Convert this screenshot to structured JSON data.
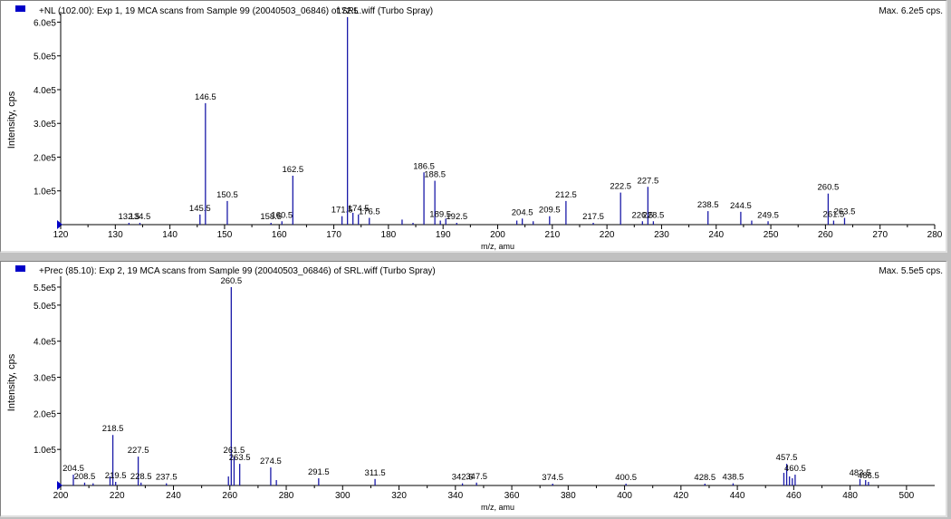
{
  "panels": [
    {
      "header": "+NL (102.00): Exp 1, 19 MCA scans from Sample 99 (20040503_06846) of SRL.wiff (Turbo Spray)",
      "max_label": "Max. 6.2e5 cps."
    },
    {
      "header": "+Prec (85.10): Exp 2, 19 MCA scans from Sample 99 (20040503_06846) of SRL.wiff (Turbo Spray)",
      "max_label": "Max. 5.5e5 cps."
    }
  ],
  "colors": {
    "peak": "#1a1aa8",
    "axis": "#000000",
    "background": "#ffffff"
  },
  "chart_data": [
    {
      "type": "bar",
      "xlabel": "m/z, amu",
      "ylabel": "Intensity, cps",
      "xlim": [
        120,
        280
      ],
      "ylim": [
        0,
        620000
      ],
      "x_ticks": [
        120,
        130,
        140,
        150,
        160,
        170,
        180,
        190,
        200,
        210,
        220,
        230,
        240,
        250,
        260,
        270,
        280
      ],
      "y_ticks": [
        {
          "value": 100000,
          "label": "1.0e5"
        },
        {
          "value": 200000,
          "label": "2.0e5"
        },
        {
          "value": 300000,
          "label": "3.0e5"
        },
        {
          "value": 400000,
          "label": "4.0e5"
        },
        {
          "value": 500000,
          "label": "5.0e5"
        },
        {
          "value": 600000,
          "label": "6.0e5"
        }
      ],
      "grid": false,
      "peaks": [
        {
          "x": 132.5,
          "y": 4000,
          "label": "132.5"
        },
        {
          "x": 134.5,
          "y": 4000,
          "label": "134.5"
        },
        {
          "x": 145.5,
          "y": 30000,
          "label": "145.5"
        },
        {
          "x": 146.5,
          "y": 360000,
          "label": "146.5"
        },
        {
          "x": 150.5,
          "y": 70000,
          "label": "150.5"
        },
        {
          "x": 158.5,
          "y": 5000,
          "label": "158.5"
        },
        {
          "x": 160.5,
          "y": 10000,
          "label": "160.5"
        },
        {
          "x": 162.5,
          "y": 145000,
          "label": "162.5"
        },
        {
          "x": 171.5,
          "y": 25000,
          "label": "171.5"
        },
        {
          "x": 172.5,
          "y": 615000,
          "label": "172.5"
        },
        {
          "x": 173.5,
          "y": 35000,
          "label": ""
        },
        {
          "x": 174.5,
          "y": 30000,
          "label": "174.5"
        },
        {
          "x": 176.5,
          "y": 20000,
          "label": "176.5"
        },
        {
          "x": 182.5,
          "y": 15000,
          "label": ""
        },
        {
          "x": 184.5,
          "y": 5000,
          "label": ""
        },
        {
          "x": 186.5,
          "y": 155000,
          "label": "186.5"
        },
        {
          "x": 188.5,
          "y": 130000,
          "label": "188.5"
        },
        {
          "x": 189.5,
          "y": 12000,
          "label": "189.5"
        },
        {
          "x": 190.5,
          "y": 18000,
          "label": ""
        },
        {
          "x": 192.5,
          "y": 5000,
          "label": "192.5"
        },
        {
          "x": 203.5,
          "y": 12000,
          "label": ""
        },
        {
          "x": 204.5,
          "y": 18000,
          "label": "204.5"
        },
        {
          "x": 206.5,
          "y": 10000,
          "label": ""
        },
        {
          "x": 209.5,
          "y": 25000,
          "label": "209.5"
        },
        {
          "x": 212.5,
          "y": 70000,
          "label": "212.5"
        },
        {
          "x": 217.5,
          "y": 5000,
          "label": "217.5"
        },
        {
          "x": 222.5,
          "y": 95000,
          "label": "222.5"
        },
        {
          "x": 226.5,
          "y": 10000,
          "label": "226.5"
        },
        {
          "x": 227.5,
          "y": 112000,
          "label": "227.5"
        },
        {
          "x": 228.5,
          "y": 10000,
          "label": "228.5"
        },
        {
          "x": 238.5,
          "y": 40000,
          "label": "238.5"
        },
        {
          "x": 244.5,
          "y": 38000,
          "label": "244.5"
        },
        {
          "x": 246.5,
          "y": 12000,
          "label": ""
        },
        {
          "x": 249.5,
          "y": 10000,
          "label": "249.5"
        },
        {
          "x": 260.5,
          "y": 92000,
          "label": "260.5"
        },
        {
          "x": 261.5,
          "y": 12000,
          "label": "261.5"
        },
        {
          "x": 263.5,
          "y": 20000,
          "label": "263.5"
        }
      ]
    },
    {
      "type": "bar",
      "xlabel": "m/z, amu",
      "ylabel": "Intensity, cps",
      "xlim": [
        200,
        510
      ],
      "ylim": [
        0,
        570000
      ],
      "x_ticks": [
        200,
        220,
        240,
        260,
        280,
        300,
        320,
        340,
        360,
        380,
        400,
        420,
        440,
        460,
        480,
        500
      ],
      "y_ticks": [
        {
          "value": 100000,
          "label": "1.0e5"
        },
        {
          "value": 200000,
          "label": "2.0e5"
        },
        {
          "value": 300000,
          "label": "3.0e5"
        },
        {
          "value": 400000,
          "label": "4.0e5"
        },
        {
          "value": 500000,
          "label": "5.0e5"
        },
        {
          "value": 550000,
          "label": "5.5e5"
        }
      ],
      "grid": false,
      "peaks": [
        {
          "x": 204.5,
          "y": 30000,
          "label": "204.5"
        },
        {
          "x": 208.5,
          "y": 8000,
          "label": "208.5"
        },
        {
          "x": 211.5,
          "y": 6000,
          "label": ""
        },
        {
          "x": 217.5,
          "y": 25000,
          "label": ""
        },
        {
          "x": 218.5,
          "y": 140000,
          "label": "218.5"
        },
        {
          "x": 219.5,
          "y": 10000,
          "label": "219.5"
        },
        {
          "x": 227.5,
          "y": 80000,
          "label": "227.5"
        },
        {
          "x": 228.5,
          "y": 8000,
          "label": "228.5"
        },
        {
          "x": 237.5,
          "y": 6000,
          "label": "237.5"
        },
        {
          "x": 259.5,
          "y": 25000,
          "label": ""
        },
        {
          "x": 260.5,
          "y": 550000,
          "label": "260.5"
        },
        {
          "x": 261.5,
          "y": 80000,
          "label": "261.5"
        },
        {
          "x": 263.5,
          "y": 60000,
          "label": "263.5"
        },
        {
          "x": 274.5,
          "y": 50000,
          "label": "274.5"
        },
        {
          "x": 276.5,
          "y": 15000,
          "label": ""
        },
        {
          "x": 291.5,
          "y": 20000,
          "label": "291.5"
        },
        {
          "x": 311.5,
          "y": 18000,
          "label": "311.5"
        },
        {
          "x": 342.5,
          "y": 6000,
          "label": "342.5"
        },
        {
          "x": 347.5,
          "y": 8000,
          "label": "347.5"
        },
        {
          "x": 374.5,
          "y": 5000,
          "label": "374.5"
        },
        {
          "x": 400.5,
          "y": 5000,
          "label": "400.5"
        },
        {
          "x": 428.5,
          "y": 5000,
          "label": "428.5"
        },
        {
          "x": 438.5,
          "y": 6000,
          "label": "438.5"
        },
        {
          "x": 456.5,
          "y": 35000,
          "label": ""
        },
        {
          "x": 457.5,
          "y": 60000,
          "label": "457.5"
        },
        {
          "x": 458.5,
          "y": 25000,
          "label": ""
        },
        {
          "x": 459.5,
          "y": 20000,
          "label": ""
        },
        {
          "x": 460.5,
          "y": 30000,
          "label": "460.5"
        },
        {
          "x": 483.5,
          "y": 18000,
          "label": "483.5"
        },
        {
          "x": 485.5,
          "y": 15000,
          "label": ""
        },
        {
          "x": 486.5,
          "y": 10000,
          "label": "486.5"
        }
      ]
    }
  ]
}
